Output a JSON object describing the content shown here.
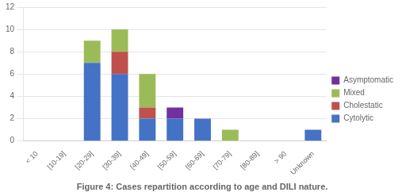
{
  "chart_data": {
    "type": "bar",
    "stacked": true,
    "title": "Figure 4: Cases repartition according to age and DILI nature.",
    "categories": [
      "< 10",
      "[10-19]",
      "[20-29]",
      "[30-39]",
      "[40-49]",
      "[50-59]",
      "[60-69]",
      "[70-79]",
      "[80-89]",
      "> 90",
      "Unknown"
    ],
    "series": [
      {
        "name": "Cytolytic",
        "color": "#4472C4",
        "values": [
          0,
          0,
          7,
          6,
          2,
          2,
          2,
          0,
          0,
          0,
          1
        ]
      },
      {
        "name": "Cholestatic",
        "color": "#C0504D",
        "values": [
          0,
          0,
          0,
          2,
          1,
          0,
          0,
          0,
          0,
          0,
          0
        ]
      },
      {
        "name": "Mixed",
        "color": "#9BBB59",
        "values": [
          0,
          0,
          2,
          2,
          3,
          0,
          0,
          1,
          0,
          0,
          0
        ]
      },
      {
        "name": "Asymptomatic",
        "color": "#7030A0",
        "values": [
          0,
          0,
          0,
          0,
          0,
          1,
          0,
          0,
          0,
          0,
          0
        ]
      }
    ],
    "ylim": [
      0,
      12
    ],
    "yticks": [
      0,
      2,
      4,
      6,
      8,
      10,
      12
    ],
    "grid": true,
    "legend": "right"
  }
}
